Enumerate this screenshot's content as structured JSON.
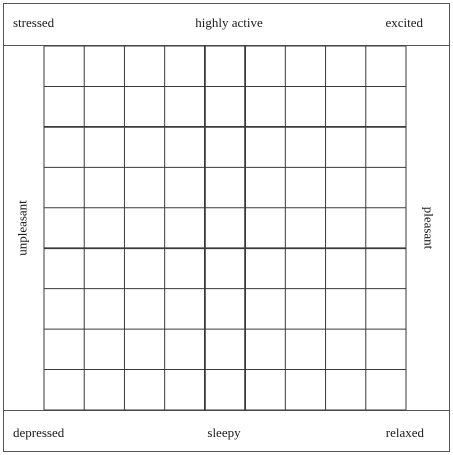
{
  "top": {
    "left_label": "stressed",
    "center_label": "highly active",
    "right_label": "excited"
  },
  "bottom": {
    "left_label": "depressed",
    "center_label": "sleepy",
    "right_label": "relaxed"
  },
  "side": {
    "left_label": "unpleasant",
    "right_label": "pleasant"
  },
  "grid": {
    "columns": 9,
    "rows": 9
  }
}
